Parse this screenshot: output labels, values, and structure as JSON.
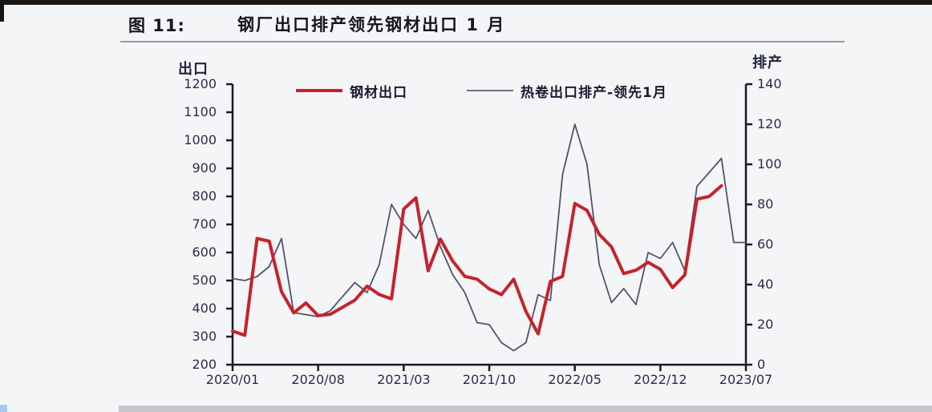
{
  "page": {
    "figure_label": "图 11:",
    "title": "钢厂出口排产领先钢材出口 1 月"
  },
  "colors": {
    "steel_export_line": "#c5232b",
    "schedule_line": "#53536b",
    "axis": "#1a1a22",
    "text": "#2c2c49"
  },
  "chart_data": {
    "type": "line",
    "title": "钢厂出口排产领先钢材出口 1 月",
    "legend_position": "top",
    "grid": false,
    "left_axis": {
      "title": "出口",
      "min": 200,
      "max": 1200,
      "step": 100,
      "tick_labels": [
        "200",
        "300",
        "400",
        "500",
        "600",
        "700",
        "800",
        "900",
        "1000",
        "1100",
        "1200"
      ]
    },
    "right_axis": {
      "title": "排产",
      "min": 0,
      "max": 140,
      "step": 20,
      "tick_labels": [
        "0",
        "20",
        "40",
        "60",
        "80",
        "100",
        "120",
        "140"
      ]
    },
    "x_tick_labels": [
      "2020/01",
      "2020/08",
      "2021/03",
      "2021/10",
      "2022/05",
      "2022/12",
      "2023/07"
    ],
    "categories": [
      "2020/01",
      "2020/02",
      "2020/03",
      "2020/04",
      "2020/05",
      "2020/06",
      "2020/07",
      "2020/08",
      "2020/09",
      "2020/10",
      "2020/11",
      "2020/12",
      "2021/01",
      "2021/02",
      "2021/03",
      "2021/04",
      "2021/05",
      "2021/06",
      "2021/07",
      "2021/08",
      "2021/09",
      "2021/10",
      "2021/11",
      "2021/12",
      "2022/01",
      "2022/02",
      "2022/03",
      "2022/04",
      "2022/05",
      "2022/06",
      "2022/07",
      "2022/08",
      "2022/09",
      "2022/10",
      "2022/11",
      "2022/12",
      "2023/01",
      "2023/02",
      "2023/03",
      "2023/04",
      "2023/05",
      "2023/06",
      "2023/07"
    ],
    "series": [
      {
        "name": "钢材出口",
        "axis": "left",
        "color": "#c5232b",
        "width": 4,
        "values": [
          320,
          305,
          650,
          640,
          460,
          385,
          420,
          375,
          380,
          405,
          430,
          480,
          450,
          435,
          755,
          795,
          535,
          648,
          570,
          515,
          505,
          470,
          450,
          505,
          390,
          310,
          497,
          515,
          775,
          750,
          665,
          620,
          525,
          537,
          565,
          540,
          475,
          520,
          790,
          800,
          838,
          null,
          null
        ]
      },
      {
        "name": "热卷出口排产-领先1月",
        "axis": "right",
        "color": "#53536b",
        "width": 1.8,
        "values": [
          43,
          42,
          44,
          49,
          63,
          26,
          25,
          24,
          27,
          34,
          41,
          36,
          50,
          80,
          70,
          63,
          77,
          59,
          45,
          36,
          21,
          20,
          11,
          7,
          11,
          35,
          32,
          95,
          120,
          100,
          50,
          31,
          38,
          30,
          56,
          53,
          61,
          47,
          89,
          96,
          103,
          61,
          61
        ]
      }
    ]
  }
}
